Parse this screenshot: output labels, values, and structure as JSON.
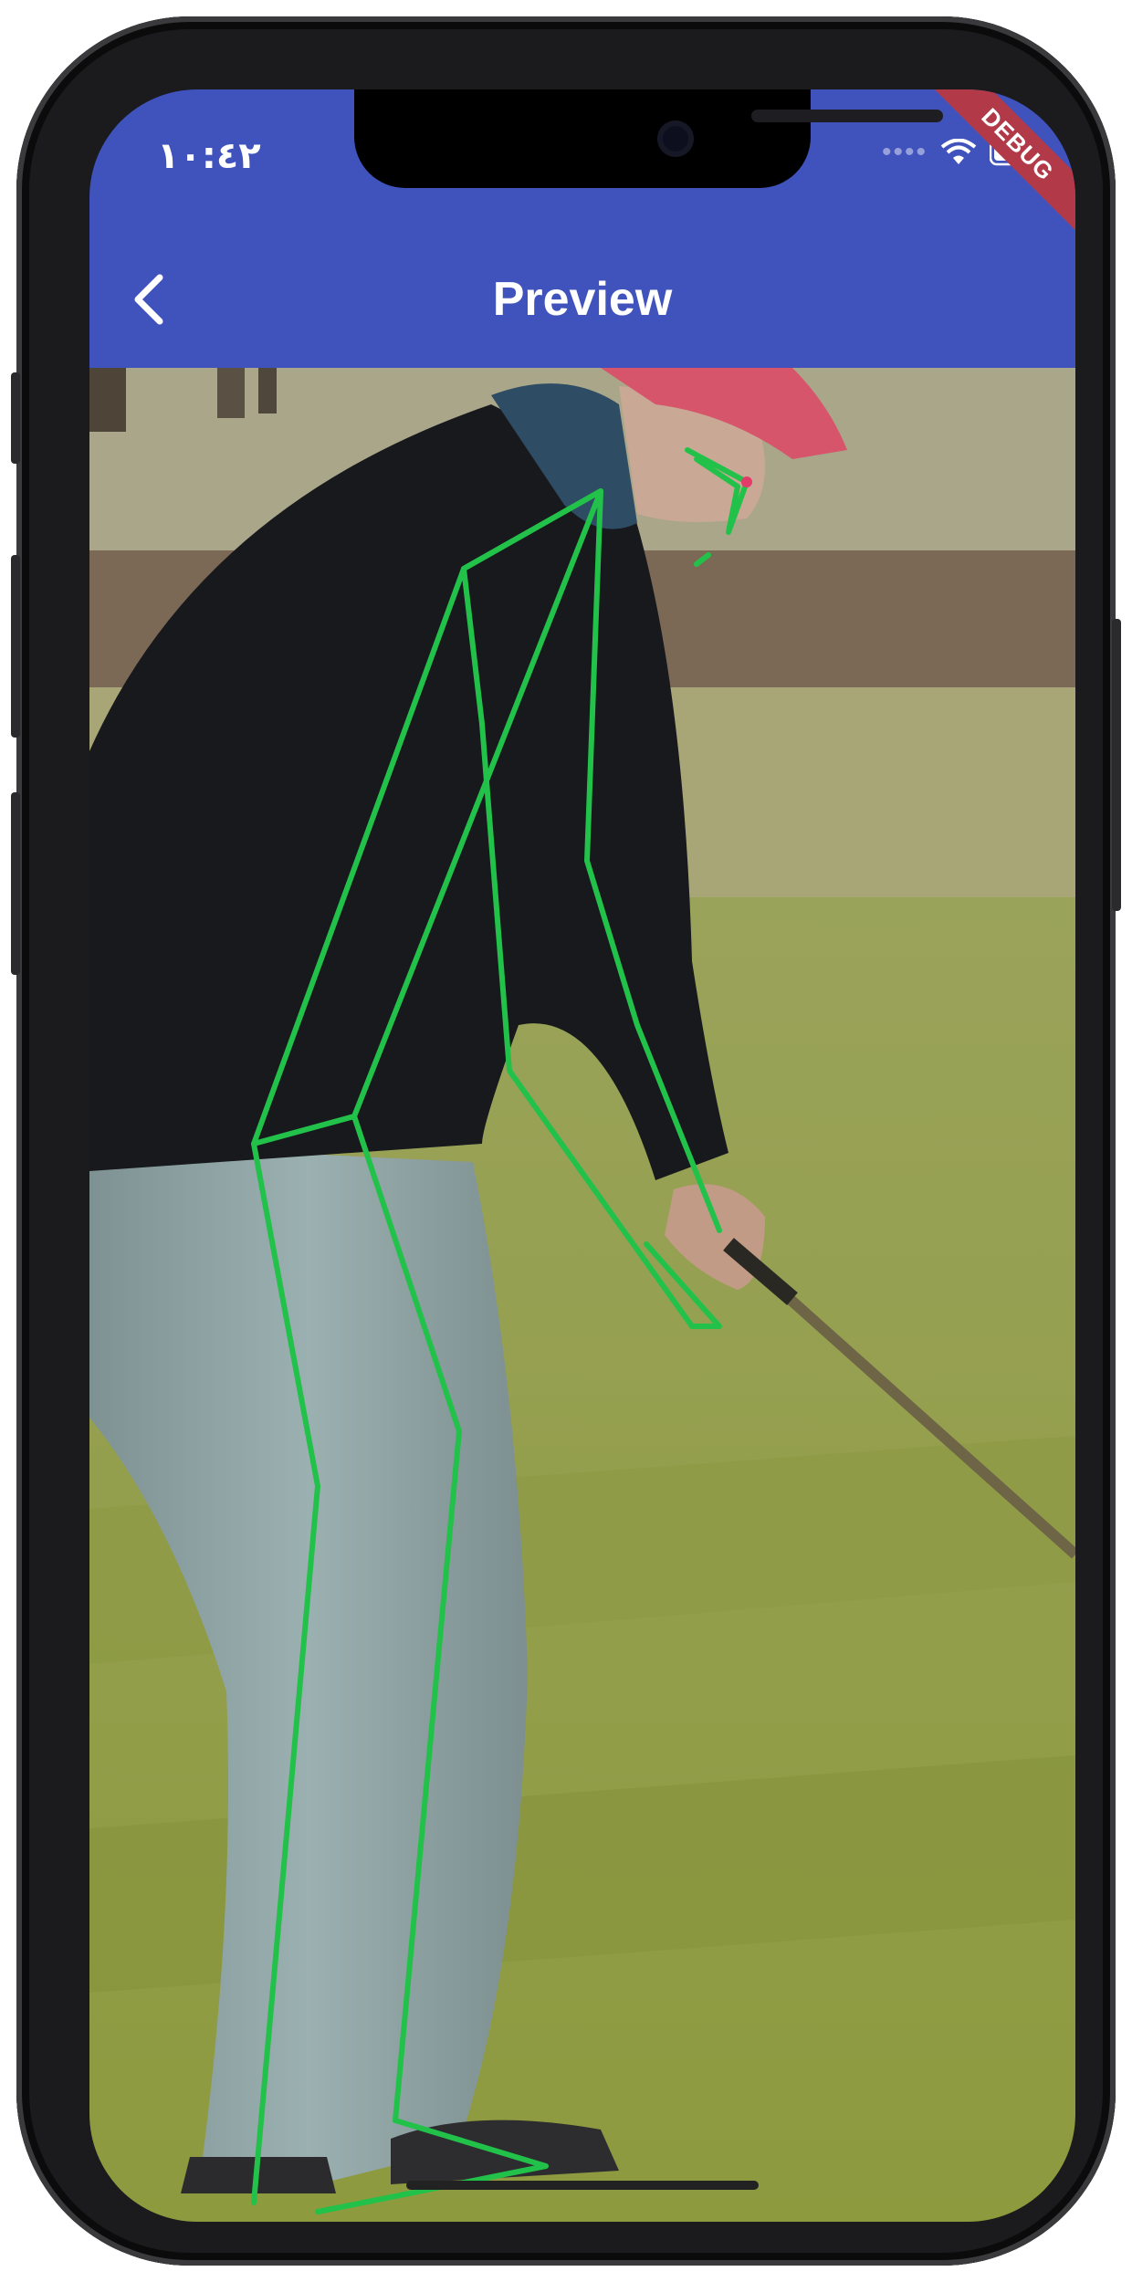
{
  "status_bar": {
    "time": "١٠:٤٢",
    "signal_icon": "signal-dots-icon",
    "wifi_icon": "wifi-icon",
    "battery_icon": "battery-icon"
  },
  "debug_banner": "DEBUG",
  "app_bar": {
    "title": "Preview",
    "back_icon": "chevron-left-icon",
    "color": "#4053BC"
  },
  "preview": {
    "pose_overlay_color": "#22C24A",
    "keypoint_color": "#E23B6A"
  }
}
